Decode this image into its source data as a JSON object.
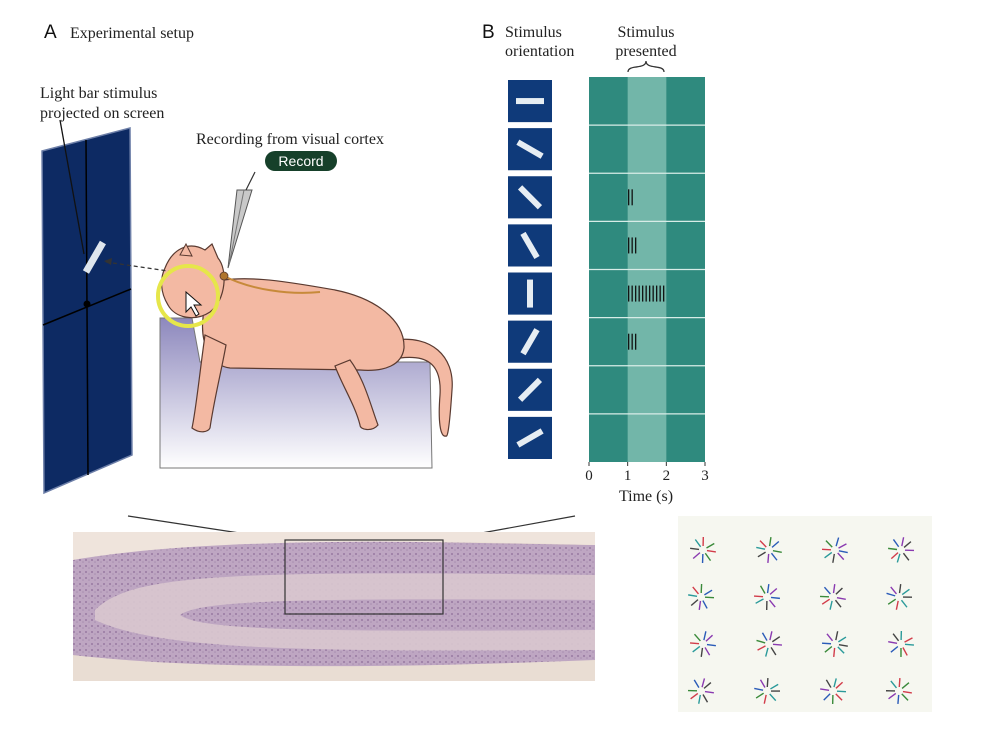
{
  "panel_a": {
    "letter": "A",
    "title": "Experimental setup",
    "stimulus_label_line1": "Light bar stimulus",
    "stimulus_label_line2": "projected on screen",
    "recording_label": "Recording from visual cortex",
    "record_badge": "Record"
  },
  "panel_b": {
    "letter": "B",
    "orientation_header_line1": "Stimulus",
    "orientation_header_line2": "orientation",
    "presented_header_line1": "Stimulus",
    "presented_header_line2": "presented",
    "x_axis_label": "Time (s)",
    "x_ticks": [
      "0",
      "1",
      "2",
      "3"
    ]
  },
  "chart_data": {
    "type": "raster",
    "x_range": [
      0,
      3
    ],
    "stimulus_window": [
      1,
      2
    ],
    "orientations_deg": [
      0,
      30,
      45,
      60,
      90,
      120,
      135,
      150
    ],
    "spike_counts": [
      0,
      0,
      2,
      3,
      11,
      3,
      0,
      0
    ]
  },
  "colors": {
    "screen": "#0d2a63",
    "panel_blue": "#0f3a7a",
    "raster_bg": "#2f8a7e",
    "stimulus_band": "#89c4b8",
    "cat": "#f3b9a3",
    "table": "#b8b4d4",
    "record_badge": "#16402a",
    "highlight": "#e6e64a"
  }
}
